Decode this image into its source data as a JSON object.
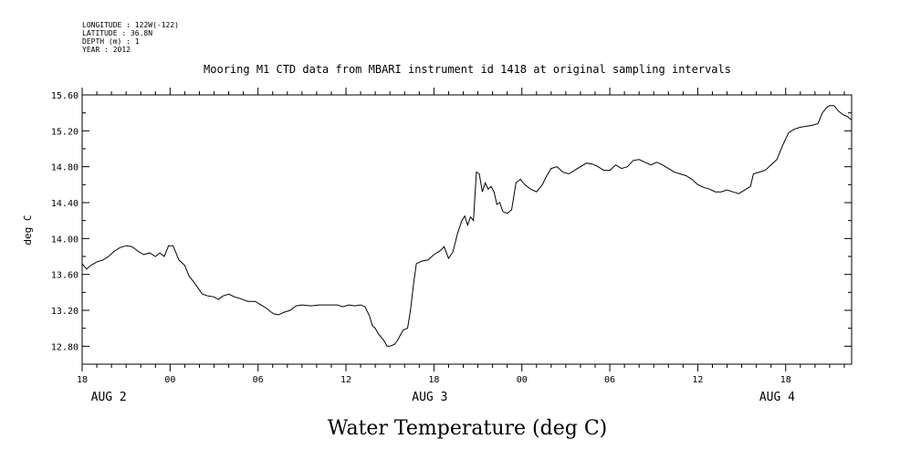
{
  "metadata": [
    "LONGITUDE : 122W(-122)",
    "LATITUDE : 36.8N",
    "DEPTH (m) : 1",
    "YEAR : 2012"
  ],
  "chart_data": {
    "type": "line",
    "title": "Mooring M1 CTD data from MBARI instrument id 1418 at original sampling intervals",
    "xlabel": "Water Temperature (deg C)",
    "ylabel": "deg C",
    "x_unit": "hours since 2012-08-02 00:00",
    "xlim": [
      18,
      70.5
    ],
    "ylim": [
      12.6,
      15.6
    ],
    "x_ticks": [
      {
        "x": 18,
        "label": "18"
      },
      {
        "x": 24,
        "label": "00"
      },
      {
        "x": 30,
        "label": "06"
      },
      {
        "x": 36,
        "label": "12"
      },
      {
        "x": 42,
        "label": "18"
      },
      {
        "x": 48,
        "label": "00"
      },
      {
        "x": 54,
        "label": "06"
      },
      {
        "x": 60,
        "label": "12"
      },
      {
        "x": 66,
        "label": "18"
      }
    ],
    "day_labels": [
      {
        "x": 18.6,
        "label": "AUG  2"
      },
      {
        "x": 40.5,
        "label": "AUG  3"
      },
      {
        "x": 64.2,
        "label": "AUG  4"
      }
    ],
    "y_ticks": [
      12.8,
      13.2,
      13.6,
      14.0,
      14.4,
      14.8,
      15.2,
      15.6
    ],
    "y_tick_labels": [
      "12.80",
      "13.20",
      "13.60",
      "14.00",
      "14.40",
      "14.80",
      "15.20",
      "15.60"
    ],
    "series": [
      {
        "color": "#000000",
        "points": [
          [
            18.0,
            13.72
          ],
          [
            18.3,
            13.66
          ],
          [
            18.6,
            13.7
          ],
          [
            19.0,
            13.74
          ],
          [
            19.4,
            13.76
          ],
          [
            19.8,
            13.8
          ],
          [
            20.2,
            13.86
          ],
          [
            20.6,
            13.9
          ],
          [
            21.0,
            13.92
          ],
          [
            21.4,
            13.91
          ],
          [
            21.8,
            13.86
          ],
          [
            22.2,
            13.82
          ],
          [
            22.6,
            13.84
          ],
          [
            23.0,
            13.8
          ],
          [
            23.3,
            13.84
          ],
          [
            23.6,
            13.8
          ],
          [
            23.9,
            13.92
          ],
          [
            24.2,
            13.92
          ],
          [
            24.6,
            13.76
          ],
          [
            25.0,
            13.7
          ],
          [
            25.3,
            13.58
          ],
          [
            25.6,
            13.52
          ],
          [
            25.9,
            13.45
          ],
          [
            26.2,
            13.38
          ],
          [
            26.6,
            13.36
          ],
          [
            27.0,
            13.35
          ],
          [
            27.3,
            13.32
          ],
          [
            27.6,
            13.36
          ],
          [
            28.0,
            13.38
          ],
          [
            28.4,
            13.35
          ],
          [
            28.8,
            13.33
          ],
          [
            29.3,
            13.3
          ],
          [
            29.8,
            13.3
          ],
          [
            30.2,
            13.26
          ],
          [
            30.6,
            13.22
          ],
          [
            30.9,
            13.18
          ],
          [
            31.1,
            13.16
          ],
          [
            31.4,
            13.15
          ],
          [
            31.8,
            13.18
          ],
          [
            32.2,
            13.2
          ],
          [
            32.6,
            13.25
          ],
          [
            33.0,
            13.26
          ],
          [
            33.6,
            13.25
          ],
          [
            34.2,
            13.26
          ],
          [
            34.8,
            13.26
          ],
          [
            35.4,
            13.26
          ],
          [
            35.8,
            13.24
          ],
          [
            36.2,
            13.26
          ],
          [
            36.6,
            13.25
          ],
          [
            37.0,
            13.26
          ],
          [
            37.3,
            13.24
          ],
          [
            37.6,
            13.14
          ],
          [
            37.8,
            13.03
          ],
          [
            38.0,
            13.0
          ],
          [
            38.2,
            12.94
          ],
          [
            38.4,
            12.9
          ],
          [
            38.6,
            12.86
          ],
          [
            38.8,
            12.8
          ],
          [
            39.0,
            12.8
          ],
          [
            39.3,
            12.82
          ],
          [
            39.5,
            12.86
          ],
          [
            39.7,
            12.92
          ],
          [
            39.9,
            12.98
          ],
          [
            40.2,
            13.0
          ],
          [
            40.4,
            13.2
          ],
          [
            40.6,
            13.48
          ],
          [
            40.8,
            13.72
          ],
          [
            41.2,
            13.75
          ],
          [
            41.6,
            13.76
          ],
          [
            42.0,
            13.82
          ],
          [
            42.4,
            13.86
          ],
          [
            42.7,
            13.91
          ],
          [
            43.0,
            13.78
          ],
          [
            43.3,
            13.85
          ],
          [
            43.6,
            14.05
          ],
          [
            43.9,
            14.2
          ],
          [
            44.1,
            14.25
          ],
          [
            44.3,
            14.15
          ],
          [
            44.5,
            14.24
          ],
          [
            44.7,
            14.2
          ],
          [
            44.9,
            14.74
          ],
          [
            45.1,
            14.72
          ],
          [
            45.3,
            14.52
          ],
          [
            45.5,
            14.62
          ],
          [
            45.7,
            14.55
          ],
          [
            45.9,
            14.58
          ],
          [
            46.1,
            14.52
          ],
          [
            46.3,
            14.38
          ],
          [
            46.5,
            14.4
          ],
          [
            46.7,
            14.3
          ],
          [
            47.0,
            14.28
          ],
          [
            47.3,
            14.32
          ],
          [
            47.6,
            14.62
          ],
          [
            47.9,
            14.66
          ],
          [
            48.2,
            14.6
          ],
          [
            48.6,
            14.55
          ],
          [
            49.0,
            14.52
          ],
          [
            49.4,
            14.6
          ],
          [
            49.7,
            14.7
          ],
          [
            50.0,
            14.78
          ],
          [
            50.4,
            14.8
          ],
          [
            50.8,
            14.74
          ],
          [
            51.2,
            14.72
          ],
          [
            51.6,
            14.76
          ],
          [
            52.0,
            14.8
          ],
          [
            52.4,
            14.84
          ],
          [
            52.8,
            14.83
          ],
          [
            53.2,
            14.8
          ],
          [
            53.6,
            14.76
          ],
          [
            54.0,
            14.76
          ],
          [
            54.4,
            14.82
          ],
          [
            54.8,
            14.78
          ],
          [
            55.2,
            14.8
          ],
          [
            55.6,
            14.87
          ],
          [
            56.0,
            14.88
          ],
          [
            56.4,
            14.85
          ],
          [
            56.8,
            14.82
          ],
          [
            57.2,
            14.85
          ],
          [
            57.6,
            14.82
          ],
          [
            58.0,
            14.78
          ],
          [
            58.4,
            14.74
          ],
          [
            58.8,
            14.72
          ],
          [
            59.2,
            14.7
          ],
          [
            59.6,
            14.66
          ],
          [
            60.0,
            14.6
          ],
          [
            60.4,
            14.57
          ],
          [
            60.8,
            14.55
          ],
          [
            61.2,
            14.52
          ],
          [
            61.6,
            14.52
          ],
          [
            62.0,
            14.54
          ],
          [
            62.4,
            14.52
          ],
          [
            62.8,
            14.5
          ],
          [
            63.2,
            14.54
          ],
          [
            63.6,
            14.58
          ],
          [
            63.8,
            14.72
          ],
          [
            64.2,
            14.74
          ],
          [
            64.6,
            14.76
          ],
          [
            65.0,
            14.82
          ],
          [
            65.4,
            14.88
          ],
          [
            65.8,
            15.04
          ],
          [
            66.2,
            15.18
          ],
          [
            66.6,
            15.22
          ],
          [
            67.0,
            15.24
          ],
          [
            67.4,
            15.25
          ],
          [
            67.8,
            15.26
          ],
          [
            68.2,
            15.28
          ],
          [
            68.5,
            15.4
          ],
          [
            68.8,
            15.46
          ],
          [
            69.0,
            15.48
          ],
          [
            69.3,
            15.48
          ],
          [
            69.6,
            15.42
          ],
          [
            69.9,
            15.38
          ],
          [
            70.2,
            15.36
          ],
          [
            70.5,
            15.32
          ]
        ]
      }
    ]
  }
}
